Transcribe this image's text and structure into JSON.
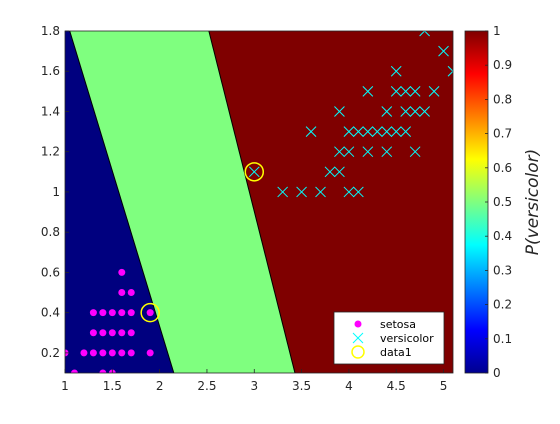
{
  "chart_data": {
    "type": "scatter",
    "title": "",
    "xlabel": "",
    "ylabel": "",
    "xlim": [
      1,
      5.1
    ],
    "ylim": [
      0.1,
      1.8
    ],
    "x_ticks": [
      "1",
      "1.5",
      "2",
      "2.5",
      "3",
      "3.5",
      "4",
      "4.5",
      "5"
    ],
    "y_ticks": [
      "0.2",
      "0.4",
      "0.6",
      "0.8",
      "1",
      "1.2",
      "1.4",
      "1.6",
      "1.8"
    ],
    "grid": false,
    "legend_position": "bottom-right",
    "regions": {
      "left_class_color": "#00007f",
      "middle_class_color": "#7fff7f",
      "right_class_color": "#7f0000",
      "boundary_1": [
        [
          1.05,
          1.8
        ],
        [
          2.15,
          0.1
        ]
      ],
      "boundary_2": [
        [
          2.52,
          1.8
        ],
        [
          3.43,
          0.1
        ]
      ]
    },
    "series": [
      {
        "name": "setosa",
        "marker": "filled-circle",
        "color": "#ff00ff",
        "points": [
          [
            1.0,
            0.2
          ],
          [
            1.1,
            0.1
          ],
          [
            1.2,
            0.2
          ],
          [
            1.3,
            0.2
          ],
          [
            1.3,
            0.3
          ],
          [
            1.3,
            0.4
          ],
          [
            1.4,
            0.1
          ],
          [
            1.4,
            0.2
          ],
          [
            1.4,
            0.3
          ],
          [
            1.5,
            0.1
          ],
          [
            1.5,
            0.2
          ],
          [
            1.5,
            0.3
          ],
          [
            1.5,
            0.4
          ],
          [
            1.6,
            0.2
          ],
          [
            1.6,
            0.4
          ],
          [
            1.6,
            0.6
          ],
          [
            1.6,
            0.5
          ],
          [
            1.7,
            0.2
          ],
          [
            1.7,
            0.3
          ],
          [
            1.7,
            0.4
          ],
          [
            1.7,
            0.5
          ],
          [
            1.9,
            0.2
          ],
          [
            1.9,
            0.4
          ],
          [
            1.4,
            0.4
          ],
          [
            1.6,
            0.3
          ]
        ]
      },
      {
        "name": "versicolor",
        "marker": "x",
        "color": "#00ffff",
        "points": [
          [
            3.0,
            1.1
          ],
          [
            3.3,
            1.0
          ],
          [
            3.5,
            1.0
          ],
          [
            3.6,
            1.3
          ],
          [
            3.7,
            1.0
          ],
          [
            3.8,
            1.1
          ],
          [
            3.9,
            1.1
          ],
          [
            3.9,
            1.2
          ],
          [
            3.9,
            1.4
          ],
          [
            4.0,
            1.0
          ],
          [
            4.0,
            1.2
          ],
          [
            4.0,
            1.3
          ],
          [
            4.1,
            1.0
          ],
          [
            4.1,
            1.3
          ],
          [
            4.2,
            1.2
          ],
          [
            4.2,
            1.3
          ],
          [
            4.2,
            1.5
          ],
          [
            4.3,
            1.3
          ],
          [
            4.4,
            1.2
          ],
          [
            4.4,
            1.3
          ],
          [
            4.4,
            1.4
          ],
          [
            4.5,
            1.3
          ],
          [
            4.5,
            1.5
          ],
          [
            4.5,
            1.6
          ],
          [
            4.6,
            1.3
          ],
          [
            4.6,
            1.4
          ],
          [
            4.6,
            1.5
          ],
          [
            4.7,
            1.2
          ],
          [
            4.7,
            1.4
          ],
          [
            4.7,
            1.5
          ],
          [
            4.8,
            1.4
          ],
          [
            4.8,
            1.8
          ],
          [
            4.9,
            1.5
          ],
          [
            5.0,
            1.7
          ],
          [
            5.1,
            1.6
          ]
        ]
      },
      {
        "name": "data1",
        "marker": "open-circle",
        "color": "#ffff00",
        "points": [
          [
            1.9,
            0.4
          ],
          [
            3.0,
            1.1
          ]
        ]
      }
    ],
    "colorbar": {
      "label": "P(versicolor)",
      "range": [
        0,
        1
      ],
      "ticks": [
        "0",
        "0.1",
        "0.2",
        "0.3",
        "0.4",
        "0.5",
        "0.6",
        "0.7",
        "0.8",
        "0.9",
        "1"
      ],
      "colormap": "jet"
    }
  }
}
